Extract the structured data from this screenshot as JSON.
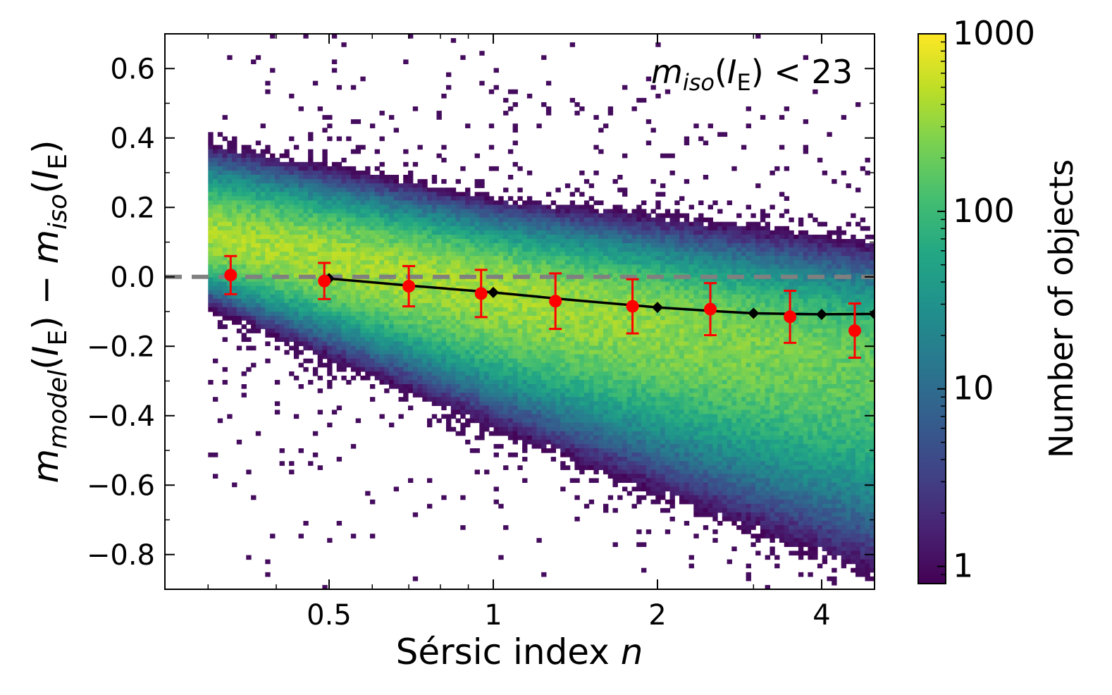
{
  "chart_data": {
    "type": "heatmap",
    "title": "",
    "annotation": {
      "base": "m",
      "sub": "iso",
      "open": "(",
      "band": "I",
      "band_sub": "E",
      "rest": ") < 23"
    },
    "xlabel": {
      "text": "Sérsic index ",
      "var": "n"
    },
    "ylabel": {
      "m1": "m",
      "sub1": "model",
      "open1": "(",
      "band1": "I",
      "bsub1": "E",
      "close1": ")",
      "minus": " − ",
      "m2": "m",
      "sub2": "iso",
      "open2": "(",
      "band2": "I",
      "bsub2": "E",
      "close2": ")"
    },
    "xscale": "log",
    "xlim": [
      0.25,
      5.0
    ],
    "ylim": [
      -0.9,
      0.7
    ],
    "xticks": [
      {
        "value": 0.5,
        "label": "0.5"
      },
      {
        "value": 1,
        "label": "1"
      },
      {
        "value": 2,
        "label": "2"
      },
      {
        "value": 4,
        "label": "4"
      }
    ],
    "yticks": [
      {
        "value": 0.6,
        "label": "0.6"
      },
      {
        "value": 0.4,
        "label": "0.4"
      },
      {
        "value": 0.2,
        "label": "0.2"
      },
      {
        "value": 0.0,
        "label": "0.0"
      },
      {
        "value": -0.2,
        "label": "−0.2"
      },
      {
        "value": -0.4,
        "label": "−0.4"
      },
      {
        "value": -0.6,
        "label": "−0.6"
      },
      {
        "value": -0.8,
        "label": "−0.8"
      }
    ],
    "reference_line": {
      "y": 0.0,
      "style": "dashed",
      "color": "#808080"
    },
    "density": {
      "description": "2D histogram of objects",
      "n_range": [
        0.3,
        5.0
      ],
      "ridge_at_n_1": -0.04,
      "peak_counts": 400
    },
    "colorbar": {
      "label": "Number of objects",
      "scale": "log",
      "range": [
        0.8,
        1000
      ],
      "ticks": [
        {
          "value": 1,
          "label": "1"
        },
        {
          "value": 10,
          "label": "10"
        },
        {
          "value": 100,
          "label": "100"
        },
        {
          "value": 1000,
          "label": "1000"
        }
      ],
      "colormap": "viridis"
    },
    "series": [
      {
        "name": "model trend",
        "type": "line",
        "color": "#000000",
        "marker": "diamond",
        "points": [
          [
            0.5,
            -0.005
          ],
          [
            1.0,
            -0.045
          ],
          [
            2.0,
            -0.088
          ],
          [
            3.0,
            -0.105
          ],
          [
            4.0,
            -0.108
          ],
          [
            5.0,
            -0.107
          ]
        ],
        "line_points": [
          [
            0.5,
            -0.005
          ],
          [
            0.7,
            -0.025
          ],
          [
            1.0,
            -0.045
          ],
          [
            1.4,
            -0.067
          ],
          [
            2.0,
            -0.088
          ],
          [
            2.5,
            -0.098
          ],
          [
            3.0,
            -0.105
          ],
          [
            4.0,
            -0.108
          ],
          [
            5.0,
            -0.107
          ]
        ]
      },
      {
        "name": "binned median",
        "type": "errorbar",
        "color": "#ff0000",
        "marker": "circle",
        "x": [
          0.33,
          0.49,
          0.7,
          0.95,
          1.3,
          1.8,
          2.5,
          3.5,
          4.6
        ],
        "y": [
          0.005,
          -0.012,
          -0.027,
          -0.048,
          -0.07,
          -0.085,
          -0.093,
          -0.115,
          -0.155
        ],
        "yerr": [
          0.055,
          0.052,
          0.058,
          0.068,
          0.08,
          0.078,
          0.075,
          0.075,
          0.078
        ]
      }
    ]
  }
}
